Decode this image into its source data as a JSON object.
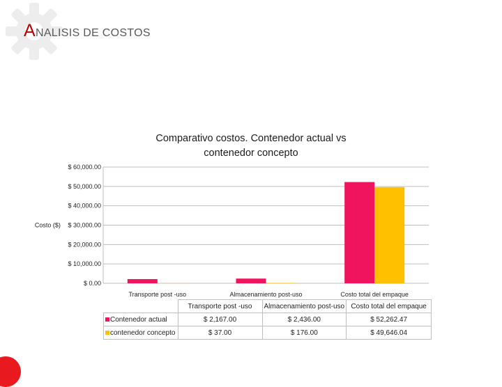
{
  "slide": {
    "title_initial": "A",
    "title_rest": "NALISIS DE COSTOS",
    "brand_color": "#c00000",
    "accent_dot_color": "#e8191f"
  },
  "chart_data": {
    "type": "bar",
    "title": "Comparativo costos. Contenedor actual vs contenedor concepto",
    "title_lines": [
      "Comparativo costos. Contenedor actual vs",
      "contenedor concepto"
    ],
    "ylabel": "Costo ($)",
    "xlabel": "",
    "ylim": [
      0,
      60000
    ],
    "y_ticks": [
      0,
      10000,
      20000,
      30000,
      40000,
      50000,
      60000
    ],
    "y_tick_labels": [
      "$ 0.00",
      "$ 10,000.00",
      "$ 20,000.00",
      "$ 30,000.00",
      "$ 40,000.00",
      "$ 50,000.00",
      "$ 60,000.00"
    ],
    "grid": true,
    "categories": [
      "Transporte post -uso",
      "Almacenamiento post-uso",
      "Costo total del empaque"
    ],
    "series": [
      {
        "name": "Contenedor actual",
        "color": "#f0145e",
        "values": [
          2167.0,
          2436.0,
          52262.47
        ],
        "labels": [
          "$ 2,167.00",
          "$ 2,436.00",
          "$ 52,262.47"
        ]
      },
      {
        "name": "contenedor concepto",
        "color": "#ffc000",
        "values": [
          37.0,
          176.0,
          49646.04
        ],
        "labels": [
          "$ 37.00",
          "$ 176.00",
          "$ 49,646.04"
        ]
      }
    ],
    "legend_placement": "data-table"
  }
}
